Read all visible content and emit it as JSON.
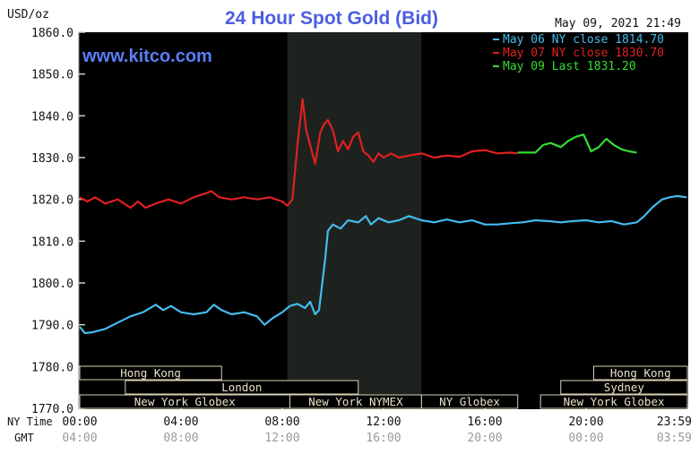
{
  "header": {
    "title": "24 Hour Spot Gold (Bid)",
    "unit": "USD/oz",
    "timestamp": "May 09, 2021 21:49",
    "site": "www.kitco.com"
  },
  "legend": [
    {
      "text": "May 06 NY close 1814.70",
      "color": "#44bbee"
    },
    {
      "text": "May 07 NY close 1830.70",
      "color": "#e02020"
    },
    {
      "text": "May 09 Last 1831.20",
      "color": "#33dd33"
    }
  ],
  "chart_data": {
    "type": "line",
    "title": "24 Hour Spot Gold (Bid)",
    "ylabel": "USD/oz",
    "ylim": [
      1770,
      1860
    ],
    "xlim": [
      0,
      24
    ],
    "grid": false,
    "legend_position": "top-right",
    "y_ticks": [
      "1770.0",
      "1780.0",
      "1790.0",
      "1800.0",
      "1810.0",
      "1820.0",
      "1830.0",
      "1840.0",
      "1850.0",
      "1860.0"
    ],
    "x_ticks_ny": [
      "00:00",
      "04:00",
      "08:00",
      "12:00",
      "16:00",
      "20:00",
      "23:59"
    ],
    "x_ticks_gmt": [
      "04:00",
      "08:00",
      "12:00",
      "16:00",
      "20:00",
      "00:00",
      "03:59"
    ],
    "x_axis_labels": {
      "ny": "NY Time",
      "gmt": "GMT"
    },
    "series": [
      {
        "name": "May 06 NY close 1814.70",
        "color": "#44bbee",
        "x": [
          0,
          0.2,
          0.5,
          1.0,
          1.5,
          2.0,
          2.5,
          3.0,
          3.3,
          3.6,
          4.0,
          4.5,
          5.0,
          5.3,
          5.6,
          6.0,
          6.5,
          7.0,
          7.3,
          7.6,
          8.0,
          8.3,
          8.6,
          8.9,
          9.1,
          9.3,
          9.45,
          9.6,
          9.7,
          9.8,
          10.0,
          10.3,
          10.6,
          11.0,
          11.3,
          11.5,
          11.8,
          12.2,
          12.6,
          13.0,
          13.5,
          14.0,
          14.5,
          15.0,
          15.5,
          16.0,
          16.5,
          17.0,
          17.5,
          18.0,
          18.5,
          19.0,
          19.5,
          20.0,
          20.5,
          21.0,
          21.5,
          22.0,
          22.3,
          22.6,
          23.0,
          23.3,
          23.6,
          23.98
        ],
        "y": [
          1789.5,
          1788.0,
          1788.2,
          1789.0,
          1790.5,
          1792.0,
          1793.0,
          1794.8,
          1793.5,
          1794.5,
          1793.0,
          1792.5,
          1793.0,
          1794.8,
          1793.5,
          1792.5,
          1793.0,
          1792.0,
          1790.0,
          1791.5,
          1793.0,
          1794.5,
          1795.0,
          1794.0,
          1795.5,
          1792.5,
          1793.5,
          1801.0,
          1806.0,
          1812.5,
          1814.0,
          1813.0,
          1815.0,
          1814.5,
          1816.0,
          1814.0,
          1815.5,
          1814.5,
          1815.0,
          1816.0,
          1815.0,
          1814.5,
          1815.2,
          1814.5,
          1815.0,
          1814.0,
          1814.0,
          1814.3,
          1814.5,
          1815.0,
          1814.8,
          1814.5,
          1814.8,
          1815.0,
          1814.5,
          1814.8,
          1814.0,
          1814.5,
          1816.0,
          1818.0,
          1820.0,
          1820.5,
          1820.8,
          1820.5
        ]
      },
      {
        "name": "May 07 NY close 1830.70",
        "color": "#e02020",
        "x": [
          0,
          0.3,
          0.6,
          1.0,
          1.5,
          2.0,
          2.3,
          2.6,
          3.0,
          3.5,
          4.0,
          4.5,
          5.0,
          5.2,
          5.5,
          6.0,
          6.5,
          7.0,
          7.5,
          8.0,
          8.2,
          8.4,
          8.6,
          8.8,
          8.95,
          9.1,
          9.3,
          9.5,
          9.65,
          9.8,
          10.0,
          10.2,
          10.4,
          10.6,
          10.8,
          11.0,
          11.2,
          11.4,
          11.6,
          11.8,
          12.0,
          12.3,
          12.6,
          13.0,
          13.5,
          14.0,
          14.5,
          15.0,
          15.5,
          16.0,
          16.5,
          17.0,
          17.3
        ],
        "y": [
          1820.5,
          1819.5,
          1820.5,
          1819.0,
          1820.0,
          1818.0,
          1819.5,
          1818.0,
          1819.0,
          1820.0,
          1819.0,
          1820.5,
          1821.5,
          1822.0,
          1820.5,
          1820.0,
          1820.5,
          1820.0,
          1820.5,
          1819.5,
          1818.5,
          1820.0,
          1833.0,
          1844.0,
          1836.5,
          1833.0,
          1828.5,
          1836.0,
          1838.0,
          1839.0,
          1836.5,
          1831.5,
          1834.0,
          1832.0,
          1835.0,
          1836.0,
          1831.5,
          1830.5,
          1829.0,
          1831.0,
          1830.0,
          1831.0,
          1830.0,
          1830.5,
          1831.0,
          1830.0,
          1830.5,
          1830.2,
          1831.5,
          1831.8,
          1831.0,
          1831.2,
          1831.0
        ]
      },
      {
        "name": "May 09 Last 1831.20",
        "color": "#33dd33",
        "x": [
          17.3,
          18.0,
          18.3,
          18.6,
          19.0,
          19.3,
          19.6,
          19.9,
          20.2,
          20.5,
          20.8,
          21.1,
          21.4,
          21.7,
          22.0
        ],
        "y": [
          1831.2,
          1831.2,
          1833.0,
          1833.5,
          1832.5,
          1834.0,
          1835.0,
          1835.5,
          1831.5,
          1832.5,
          1834.5,
          1833.0,
          1832.0,
          1831.5,
          1831.2
        ]
      }
    ],
    "shaded_region": {
      "x_start": 8.2,
      "x_end": 13.5,
      "color": "#1e221e"
    },
    "market_bars": [
      {
        "label": "Hong Kong",
        "row": 1,
        "x_start": 0,
        "x_end": 5.6
      },
      {
        "label": "Hong Kong",
        "row": 1,
        "x_start": 20.3,
        "x_end": 24
      },
      {
        "label": "London",
        "row": 2,
        "x_start": 1.8,
        "x_end": 11.0
      },
      {
        "label": "Sydney",
        "row": 2,
        "x_start": 19.0,
        "x_end": 24
      },
      {
        "label": "New York Globex",
        "row": 3,
        "x_start": 0,
        "x_end": 8.3
      },
      {
        "label": "New York NYMEX",
        "row": 3,
        "x_start": 8.3,
        "x_end": 13.5
      },
      {
        "label": "NY Globex",
        "row": 3,
        "x_start": 13.5,
        "x_end": 17.3
      },
      {
        "label": "New York Globex",
        "row": 3,
        "x_start": 18.2,
        "x_end": 24
      }
    ]
  }
}
